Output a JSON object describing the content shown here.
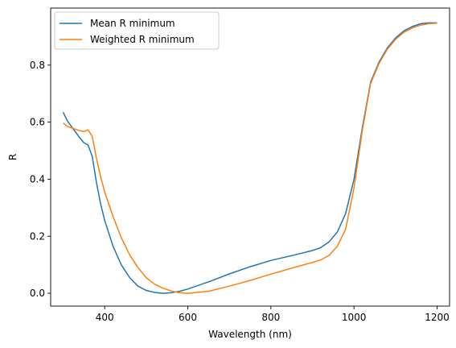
{
  "chart_data": {
    "type": "line",
    "title": "",
    "xlabel": "Wavelength (nm)",
    "ylabel": "R",
    "xlim": [
      270,
      1230
    ],
    "ylim": [
      -0.045,
      1.0
    ],
    "xticks": [
      400,
      600,
      800,
      1000,
      1200
    ],
    "yticks": [
      0.0,
      0.2,
      0.4,
      0.6,
      0.8
    ],
    "xtick_labels": [
      "400",
      "600",
      "800",
      "1000",
      "1200"
    ],
    "ytick_labels": [
      "0.0",
      "0.2",
      "0.4",
      "0.6",
      "0.8"
    ],
    "grid": false,
    "legend_position": "top-left",
    "series": [
      {
        "name": "Mean R minimum",
        "color": "#1f77b4",
        "x": [
          300,
          310,
          320,
          330,
          340,
          350,
          360,
          370,
          380,
          390,
          400,
          420,
          440,
          460,
          480,
          500,
          520,
          540,
          560,
          580,
          600,
          650,
          700,
          750,
          800,
          850,
          900,
          920,
          940,
          960,
          980,
          1000,
          1020,
          1040,
          1060,
          1080,
          1100,
          1120,
          1140,
          1160,
          1180,
          1200
        ],
        "y": [
          0.635,
          0.605,
          0.585,
          0.565,
          0.545,
          0.528,
          0.52,
          0.48,
          0.39,
          0.315,
          0.255,
          0.165,
          0.1,
          0.055,
          0.025,
          0.01,
          0.003,
          0.0,
          0.002,
          0.007,
          0.015,
          0.04,
          0.068,
          0.093,
          0.115,
          0.132,
          0.15,
          0.16,
          0.18,
          0.215,
          0.28,
          0.4,
          0.58,
          0.74,
          0.81,
          0.86,
          0.895,
          0.92,
          0.935,
          0.945,
          0.948,
          0.948
        ]
      },
      {
        "name": "Weighted R minimum",
        "color": "#ff7f0e",
        "x": [
          300,
          310,
          320,
          330,
          340,
          350,
          360,
          370,
          380,
          390,
          400,
          420,
          440,
          460,
          480,
          500,
          520,
          540,
          560,
          580,
          600,
          650,
          700,
          750,
          800,
          850,
          900,
          920,
          940,
          960,
          980,
          1000,
          1020,
          1040,
          1060,
          1080,
          1100,
          1120,
          1140,
          1160,
          1180,
          1200
        ],
        "y": [
          0.597,
          0.585,
          0.58,
          0.575,
          0.57,
          0.567,
          0.573,
          0.55,
          0.475,
          0.41,
          0.355,
          0.27,
          0.195,
          0.135,
          0.09,
          0.055,
          0.032,
          0.018,
          0.008,
          0.002,
          0.0,
          0.007,
          0.025,
          0.045,
          0.067,
          0.088,
          0.108,
          0.117,
          0.133,
          0.165,
          0.225,
          0.37,
          0.57,
          0.735,
          0.805,
          0.855,
          0.89,
          0.915,
          0.93,
          0.94,
          0.945,
          0.947
        ]
      }
    ]
  }
}
